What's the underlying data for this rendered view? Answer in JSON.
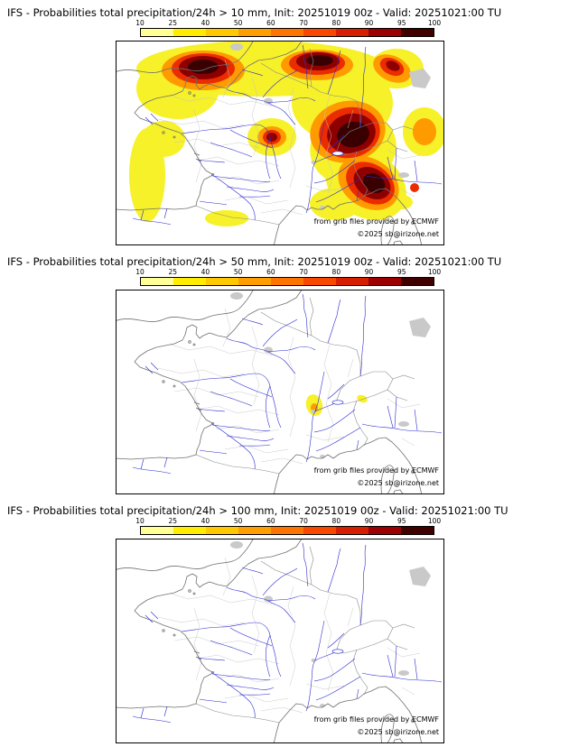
{
  "colorbar": {
    "ticks": [
      "10",
      "25",
      "40",
      "50",
      "60",
      "70",
      "80",
      "90",
      "95",
      "100"
    ],
    "colors": [
      "#ffff96",
      "#ffec00",
      "#ffc800",
      "#ff9e00",
      "#ff7300",
      "#f94700",
      "#d81e00",
      "#9c0000",
      "#400000"
    ]
  },
  "panels": [
    {
      "title": "IFS - Probabilities total precipitation/24h > 10 mm, Init: 20251019 00z - Valid: 20251021:00 TU",
      "attrib1": "from grib files provided by ECMWF",
      "attrib2": "©2025 sb@irizone.net"
    },
    {
      "title": "IFS - Probabilities total precipitation/24h > 50 mm, Init: 20251019 00z - Valid: 20251021:00 TU",
      "attrib1": "from grib files provided by ECMWF",
      "attrib2": "©2025 sb@irizone.net"
    },
    {
      "title": "IFS - Probabilities total precipitation/24h > 100 mm, Init: 20251019 00z - Valid: 20251021:00 TU",
      "attrib1": "from grib files provided by ECMWF",
      "attrib2": "©2025 sb@irizone.net"
    }
  ]
}
